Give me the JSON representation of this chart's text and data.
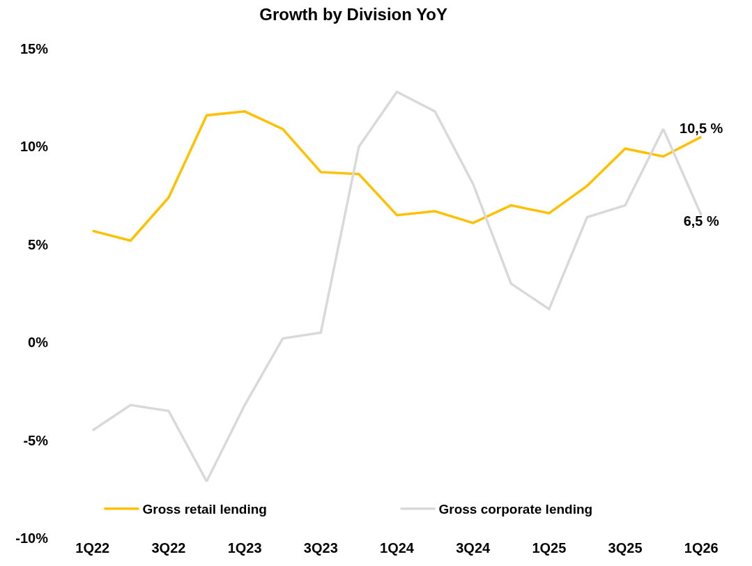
{
  "chart_data": {
    "type": "line",
    "title": "Growth by Division YoY",
    "categories": [
      "1Q22",
      null,
      "3Q22",
      null,
      "1Q23",
      null,
      "3Q23",
      null,
      "1Q24",
      null,
      "3Q24",
      null,
      "1Q25",
      null,
      "3Q25",
      null,
      "1Q26"
    ],
    "series": [
      {
        "name": "Gross retail lending",
        "color": "#ffc000",
        "values": [
          5.7,
          5.2,
          7.4,
          11.6,
          11.8,
          10.9,
          8.7,
          8.6,
          6.5,
          6.7,
          6.1,
          7.0,
          6.6,
          8.0,
          9.9,
          9.5,
          10.5
        ],
        "value_labels": [
          null,
          null,
          null,
          null,
          null,
          null,
          null,
          null,
          null,
          null,
          null,
          null,
          null,
          null,
          null,
          null,
          "10,5 %"
        ]
      },
      {
        "name": "Gross corporate lending",
        "color": "#d9d9d9",
        "values": [
          -4.5,
          -3.2,
          -3.5,
          -7.1,
          -3.2,
          0.2,
          0.5,
          10.0,
          12.8,
          11.8,
          8.1,
          3.0,
          1.7,
          6.4,
          7.0,
          10.9,
          6.5
        ],
        "value_labels": [
          null,
          null,
          null,
          null,
          null,
          null,
          null,
          null,
          null,
          null,
          null,
          null,
          null,
          null,
          null,
          null,
          "6,5 %"
        ]
      }
    ],
    "ylim": [
      -10,
      15
    ],
    "yticks": [
      {
        "value": -10,
        "label": "-10%"
      },
      {
        "value": -5,
        "label": "-5%"
      },
      {
        "value": 0,
        "label": "0%"
      },
      {
        "value": 5,
        "label": "5%"
      },
      {
        "value": 10,
        "label": "10%"
      },
      {
        "value": 15,
        "label": "15%"
      }
    ],
    "grid": false,
    "legend": "bottom",
    "marker": "none",
    "line_style": "solid"
  }
}
